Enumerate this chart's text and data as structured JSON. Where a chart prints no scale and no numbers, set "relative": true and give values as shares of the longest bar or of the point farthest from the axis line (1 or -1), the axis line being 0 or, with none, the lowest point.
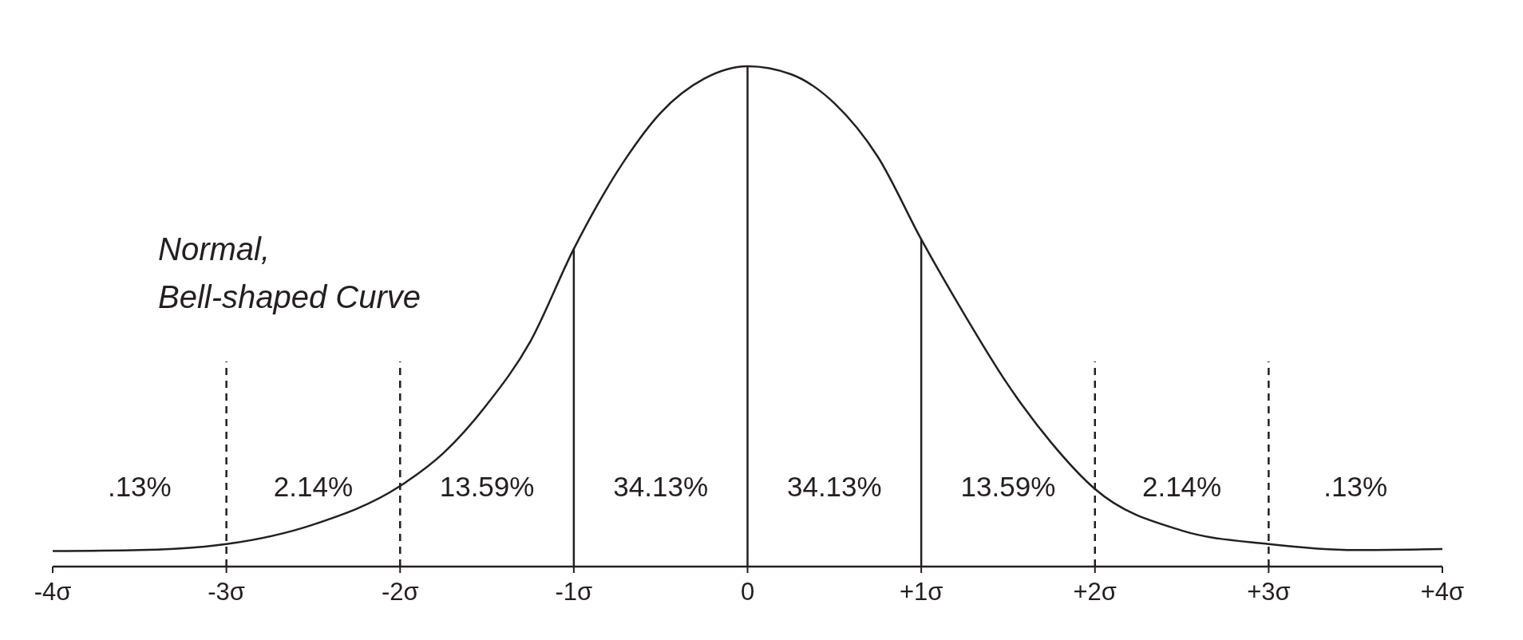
{
  "chart_data": {
    "type": "line",
    "relative": true,
    "xlim": [
      -4,
      4
    ],
    "xticks": [
      {
        "value": -4,
        "label": "-4σ"
      },
      {
        "value": -3,
        "label": "-3σ"
      },
      {
        "value": -2,
        "label": "-2σ"
      },
      {
        "value": -1,
        "label": "-1σ"
      },
      0,
      {
        "value": 1,
        "label": "+1σ"
      },
      {
        "value": 2,
        "label": "+2σ"
      },
      {
        "value": 3,
        "label": "+3σ"
      },
      {
        "value": 4,
        "label": "+4σ"
      }
    ],
    "series": [
      {
        "color": "#231f20",
        "x": [
          -4,
          -3.5,
          -3,
          -2.5,
          -2,
          -1.75,
          -1.5,
          -1.25,
          -1,
          -0.7,
          -0.5,
          -0.25,
          0,
          0.25,
          0.5,
          0.75,
          1,
          1.25,
          1.5,
          1.75,
          2,
          2.5,
          3,
          3.5,
          4
        ],
        "values": [
          0.031,
          0.033,
          0.045,
          0.084,
          0.161,
          0.227,
          0.324,
          0.45,
          0.635,
          0.816,
          0.907,
          0.975,
          1,
          0.984,
          0.926,
          0.819,
          0.654,
          0.503,
          0.363,
          0.247,
          0.155,
          0.072,
          0.045,
          0.033,
          0.035
        ]
      }
    ],
    "ref_lines": [
      {
        "axis": "x",
        "value": -3,
        "line_style": "dashed",
        "color": "#231f20"
      },
      {
        "axis": "x",
        "value": -2,
        "line_style": "dashed",
        "color": "#231f20"
      },
      {
        "axis": "x",
        "value": -1,
        "line_style": "solid",
        "color": "#231f20"
      },
      {
        "axis": "x",
        "value": 0,
        "line_style": "solid",
        "color": "#231f20"
      },
      {
        "axis": "x",
        "value": 1,
        "line_style": "solid",
        "color": "#231f20"
      },
      {
        "axis": "x",
        "value": 2,
        "line_style": "dashed",
        "color": "#231f20"
      },
      {
        "axis": "x",
        "value": 3,
        "line_style": "dashed",
        "color": "#231f20"
      }
    ],
    "annotations": [
      "Normal,\nBell-shaped Curve",
      ".13%",
      "2.14%",
      "13.59%",
      "34.13%",
      "34.13%",
      "13.59%",
      "2.14%",
      ".13%"
    ]
  }
}
